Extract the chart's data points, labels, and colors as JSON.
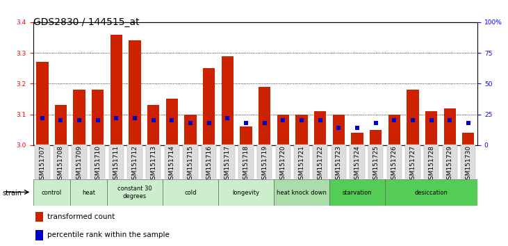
{
  "title": "GDS2830 / 144515_at",
  "samples": [
    "GSM151707",
    "GSM151708",
    "GSM151709",
    "GSM151710",
    "GSM151711",
    "GSM151712",
    "GSM151713",
    "GSM151714",
    "GSM151715",
    "GSM151716",
    "GSM151717",
    "GSM151718",
    "GSM151719",
    "GSM151720",
    "GSM151721",
    "GSM151722",
    "GSM151723",
    "GSM151724",
    "GSM151725",
    "GSM151726",
    "GSM151727",
    "GSM151728",
    "GSM151729",
    "GSM151730"
  ],
  "red_values": [
    3.27,
    3.13,
    3.18,
    3.18,
    3.36,
    3.34,
    3.13,
    3.15,
    3.1,
    3.25,
    3.29,
    3.06,
    3.19,
    3.1,
    3.1,
    3.11,
    3.1,
    3.04,
    3.05,
    3.1,
    3.18,
    3.11,
    3.12,
    3.04
  ],
  "blue_values": [
    22,
    20,
    20,
    20,
    22,
    22,
    20,
    20,
    18,
    18,
    22,
    18,
    18,
    20,
    20,
    20,
    14,
    14,
    18,
    20,
    20,
    20,
    20,
    18
  ],
  "groups": [
    {
      "label": "control",
      "start": 0,
      "end": 2,
      "color": "#cceecc"
    },
    {
      "label": "heat",
      "start": 2,
      "end": 4,
      "color": "#cceecc"
    },
    {
      "label": "constant 30\ndegrees",
      "start": 4,
      "end": 7,
      "color": "#cceecc"
    },
    {
      "label": "cold",
      "start": 7,
      "end": 10,
      "color": "#cceecc"
    },
    {
      "label": "longevity",
      "start": 10,
      "end": 13,
      "color": "#cceecc"
    },
    {
      "label": "heat knock down",
      "start": 13,
      "end": 16,
      "color": "#aaddaa"
    },
    {
      "label": "starvation",
      "start": 16,
      "end": 19,
      "color": "#55cc55"
    },
    {
      "label": "desiccation",
      "start": 19,
      "end": 24,
      "color": "#55cc55"
    }
  ],
  "ylim_left": [
    3.0,
    3.4
  ],
  "ylim_right": [
    0,
    100
  ],
  "yticks_left": [
    3.0,
    3.1,
    3.2,
    3.3,
    3.4
  ],
  "yticks_right": [
    0,
    25,
    50,
    75,
    100
  ],
  "bar_color": "#cc2200",
  "marker_color": "#0000cc",
  "bg_color": "#ffffff",
  "title_fontsize": 10,
  "tick_fontsize": 6.5,
  "label_fontsize": 7.5
}
